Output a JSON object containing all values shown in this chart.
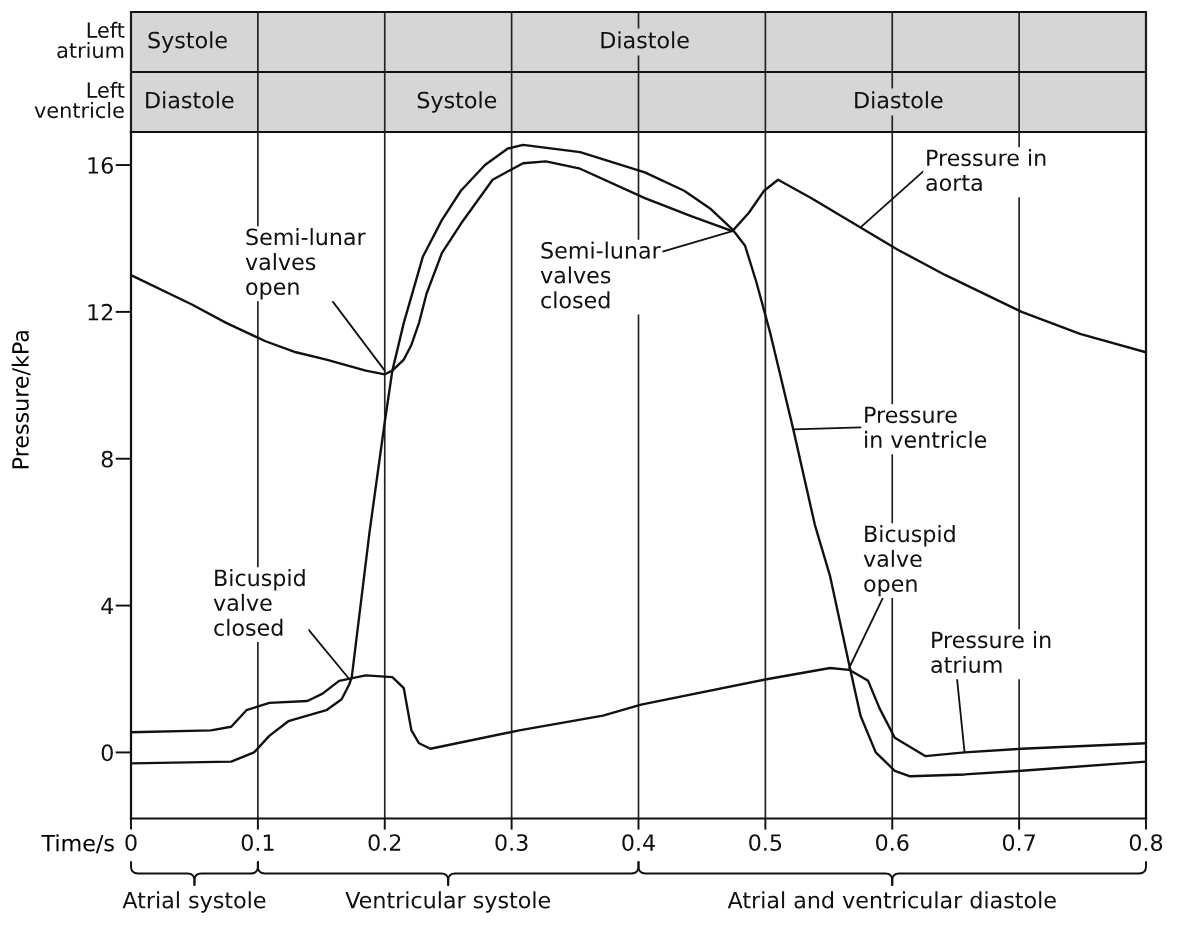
{
  "chart_data": {
    "type": "line",
    "xlabel": "Time/s",
    "ylabel": "Pressure/kPa",
    "xlim": [
      0,
      0.8
    ],
    "ylim": [
      -1.8,
      16.9
    ],
    "xticks": [
      0,
      0.1,
      0.2,
      0.3,
      0.4,
      0.5,
      0.6,
      0.7,
      0.8
    ],
    "yticks": [
      0,
      4,
      8,
      12,
      16
    ],
    "grid": "x",
    "line_style": "solid",
    "series": [
      {
        "name": "Pressure in\naorta",
        "color": "#111111",
        "x": [
          0,
          0.048,
          0.075,
          0.106,
          0.13,
          0.154,
          0.185,
          0.2,
          0.206,
          0.215,
          0.221,
          0.227,
          0.233,
          0.245,
          0.26,
          0.285,
          0.309,
          0.327,
          0.354,
          0.405,
          0.442,
          0.474,
          0.487,
          0.499,
          0.51,
          0.536,
          0.575,
          0.604,
          0.642,
          0.702,
          0.748,
          0.8
        ],
        "values": [
          13.0,
          12.2,
          11.7,
          11.2,
          10.9,
          10.7,
          10.4,
          10.3,
          10.4,
          10.7,
          11.1,
          11.7,
          12.5,
          13.6,
          14.4,
          15.6,
          16.05,
          16.1,
          15.9,
          15.1,
          14.6,
          14.2,
          14.7,
          15.3,
          15.6,
          15.1,
          14.3,
          13.7,
          13.0,
          12.0,
          11.4,
          10.9
        ]
      },
      {
        "name": "Pressure\nin ventricle",
        "color": "#111111",
        "x": [
          0,
          0.079,
          0.097,
          0.109,
          0.124,
          0.154,
          0.166,
          0.172,
          0.174,
          0.188,
          0.2,
          0.206,
          0.215,
          0.23,
          0.245,
          0.26,
          0.279,
          0.297,
          0.309,
          0.354,
          0.405,
          0.436,
          0.457,
          0.474,
          0.484,
          0.493,
          0.504,
          0.522,
          0.539,
          0.551,
          0.566,
          0.575,
          0.587,
          0.602,
          0.614,
          0.657,
          0.702,
          0.8
        ],
        "values": [
          -0.3,
          -0.25,
          0.0,
          0.45,
          0.85,
          1.15,
          1.45,
          1.85,
          2.05,
          6.0,
          9.0,
          10.4,
          11.7,
          13.5,
          14.5,
          15.3,
          16.0,
          16.45,
          16.55,
          16.35,
          15.8,
          15.3,
          14.8,
          14.25,
          13.8,
          12.8,
          11.4,
          8.8,
          6.2,
          4.8,
          2.4,
          1.0,
          0.0,
          -0.5,
          -0.65,
          -0.6,
          -0.5,
          -0.25
        ]
      },
      {
        "name": "Pressure in\natrium",
        "color": "#111111",
        "x": [
          0,
          0.063,
          0.079,
          0.091,
          0.109,
          0.139,
          0.151,
          0.164,
          0.185,
          0.206,
          0.215,
          0.221,
          0.227,
          0.236,
          0.306,
          0.372,
          0.402,
          0.502,
          0.551,
          0.566,
          0.581,
          0.59,
          0.602,
          0.626,
          0.657,
          0.702,
          0.8
        ],
        "values": [
          0.55,
          0.6,
          0.7,
          1.15,
          1.35,
          1.4,
          1.6,
          1.95,
          2.1,
          2.05,
          1.75,
          0.6,
          0.25,
          0.1,
          0.6,
          1.0,
          1.3,
          2.0,
          2.3,
          2.25,
          1.95,
          1.2,
          0.4,
          -0.1,
          0.0,
          0.1,
          0.25
        ]
      }
    ],
    "annotations": [
      "Left\natrium",
      "Left\nventricle",
      "Systole",
      "Diastole",
      "Diastole",
      "Systole",
      "Diastole",
      "Atrial systole",
      "Ventricular systole",
      "Atrial and ventricular diastole",
      {
        "text": "Semi-lunar\nvalves\nopen",
        "x": 0.2,
        "y": 10.4
      },
      {
        "text": "Semi-lunar\nvalves\nclosed",
        "x": 0.474,
        "y": 14.2
      },
      {
        "text": "Bicuspid\nvalve\nclosed",
        "x": 0.172,
        "y": 2.0
      },
      {
        "text": "Bicuspid\nvalve\nopen",
        "x": 0.566,
        "y": 2.3
      }
    ]
  }
}
